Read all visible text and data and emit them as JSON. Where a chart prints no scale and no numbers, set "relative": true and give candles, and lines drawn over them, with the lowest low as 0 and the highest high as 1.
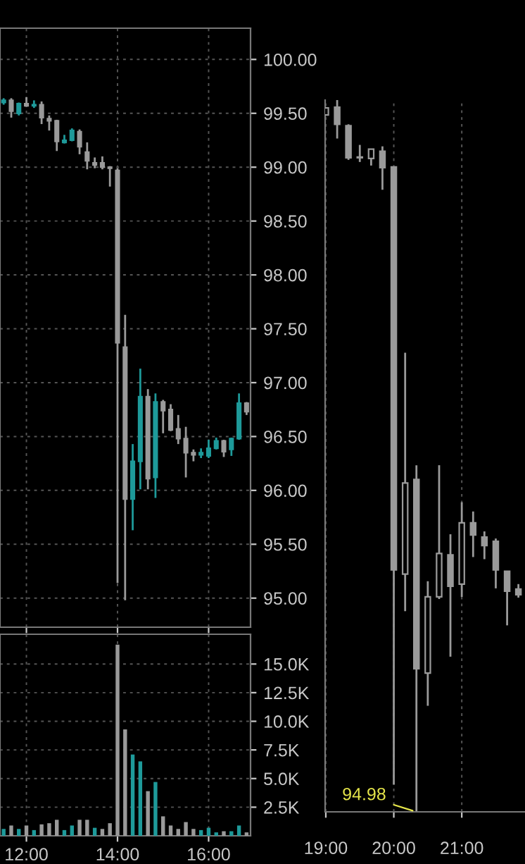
{
  "chart_data": [
    {
      "type": "candlestick",
      "x": [
        11.5,
        11.667,
        11.833,
        12.0,
        12.167,
        12.333,
        12.5,
        12.667,
        12.833,
        13.0,
        13.167,
        13.333,
        13.5,
        13.667,
        13.833,
        14.0,
        14.167,
        14.333,
        14.5,
        14.667,
        14.833,
        15.0,
        15.167,
        15.333,
        15.5,
        15.667,
        15.833,
        16.0,
        16.167,
        16.333,
        16.5,
        16.667,
        16.833
      ],
      "ohlc": [
        [
          99.6,
          99.64,
          99.58,
          99.62
        ],
        [
          99.62,
          99.64,
          99.46,
          99.52
        ],
        [
          99.5,
          99.6,
          99.48,
          99.59
        ],
        [
          99.59,
          99.65,
          99.56,
          99.57
        ],
        [
          99.57,
          99.62,
          99.55,
          99.58
        ],
        [
          99.58,
          99.61,
          99.4,
          99.46
        ],
        [
          99.45,
          99.48,
          99.34,
          99.43
        ],
        [
          99.43,
          99.44,
          99.15,
          99.24
        ],
        [
          99.23,
          99.3,
          99.22,
          99.25
        ],
        [
          99.25,
          99.36,
          99.24,
          99.34
        ],
        [
          99.33,
          99.35,
          99.12,
          99.19
        ],
        [
          99.14,
          99.23,
          98.98,
          99.06
        ],
        [
          99.04,
          99.09,
          98.99,
          99.02
        ],
        [
          99.04,
          99.1,
          98.98,
          99.0
        ],
        [
          99.0,
          99.01,
          98.82,
          98.99
        ],
        [
          98.97,
          98.99,
          95.14,
          97.37
        ],
        [
          97.33,
          97.63,
          94.98,
          95.92
        ],
        [
          95.92,
          96.43,
          95.63,
          96.27
        ],
        [
          96.27,
          97.13,
          96.01,
          96.87
        ],
        [
          96.87,
          96.94,
          96.01,
          96.11
        ],
        [
          96.12,
          96.9,
          95.93,
          96.82
        ],
        [
          96.82,
          96.84,
          96.53,
          96.74
        ],
        [
          96.75,
          96.8,
          96.55,
          96.56
        ],
        [
          96.57,
          96.7,
          96.43,
          96.48
        ],
        [
          96.48,
          96.59,
          96.12,
          96.35
        ],
        [
          96.35,
          96.38,
          96.27,
          96.33
        ],
        [
          96.33,
          96.39,
          96.3,
          96.35
        ],
        [
          96.32,
          96.47,
          96.3,
          96.39
        ],
        [
          96.39,
          96.49,
          96.38,
          96.46
        ],
        [
          96.46,
          96.47,
          96.31,
          96.36
        ],
        [
          96.38,
          96.49,
          96.32,
          96.48
        ],
        [
          96.48,
          96.9,
          96.47,
          96.81
        ],
        [
          96.81,
          96.82,
          96.7,
          96.73
        ]
      ],
      "colors": [
        "#1e9a9a",
        "#9a9a9a",
        "#1e9a9a",
        "#9a9a9a",
        "#1e9a9a",
        "#9a9a9a",
        "#9a9a9a",
        "#9a9a9a",
        "#1e9a9a",
        "#1e9a9a",
        "#9a9a9a",
        "#9a9a9a",
        "#9a9a9a",
        "#9a9a9a",
        "#9a9a9a",
        "#9a9a9a",
        "#9a9a9a",
        "#1e9a9a",
        "#1e9a9a",
        "#9a9a9a",
        "#1e9a9a",
        "#9a9a9a",
        "#9a9a9a",
        "#9a9a9a",
        "#9a9a9a",
        "#9a9a9a",
        "#1e9a9a",
        "#1e9a9a",
        "#1e9a9a",
        "#9a9a9a",
        "#1e9a9a",
        "#1e9a9a",
        "#9a9a9a"
      ],
      "xlim": [
        11.42,
        16.92
      ],
      "xticks": [
        {
          "value": 12,
          "label": null
        },
        {
          "value": 14,
          "label": null
        },
        {
          "value": 16,
          "label": null
        }
      ],
      "ylim": [
        94.73,
        100.29
      ],
      "yticks": [
        {
          "value": 95,
          "label": "95.00"
        },
        {
          "value": 95.5,
          "label": "95.50"
        },
        {
          "value": 96,
          "label": "96.00"
        },
        {
          "value": 96.5,
          "label": "96.50"
        },
        {
          "value": 97,
          "label": "97.00"
        },
        {
          "value": 97.5,
          "label": "97.50"
        },
        {
          "value": 98,
          "label": "98.00"
        },
        {
          "value": 98.5,
          "label": "98.50"
        },
        {
          "value": 99,
          "label": "99.00"
        },
        {
          "value": 99.5,
          "label": "99.50"
        },
        {
          "value": 100,
          "label": "100.00"
        }
      ],
      "tick_labels": "y",
      "grid": true
    },
    {
      "type": "bar",
      "x": [
        11.5,
        11.667,
        11.833,
        12.0,
        12.167,
        12.333,
        12.5,
        12.667,
        12.833,
        13.0,
        13.167,
        13.333,
        13.5,
        13.667,
        13.833,
        14.0,
        14.167,
        14.333,
        14.5,
        14.667,
        14.833,
        15.0,
        15.167,
        15.333,
        15.5,
        15.667,
        15.833,
        16.0,
        16.167,
        16.333,
        16.5,
        16.667,
        16.833
      ],
      "values": [
        600,
        900,
        600,
        900,
        500,
        1000,
        1100,
        1400,
        500,
        900,
        1400,
        1400,
        700,
        600,
        1100,
        16700,
        9300,
        7100,
        6500,
        3900,
        4700,
        1700,
        900,
        600,
        1200,
        600,
        500,
        700,
        300,
        400,
        400,
        900,
        300
      ],
      "colors": [
        "#1e9a9a",
        "#9a9a9a",
        "#1e9a9a",
        "#9a9a9a",
        "#1e9a9a",
        "#9a9a9a",
        "#9a9a9a",
        "#9a9a9a",
        "#1e9a9a",
        "#1e9a9a",
        "#9a9a9a",
        "#9a9a9a",
        "#1e9a9a",
        "#9a9a9a",
        "#9a9a9a",
        "#9a9a9a",
        "#9a9a9a",
        "#1e9a9a",
        "#1e9a9a",
        "#9a9a9a",
        "#1e9a9a",
        "#9a9a9a",
        "#9a9a9a",
        "#9a9a9a",
        "#9a9a9a",
        "#9a9a9a",
        "#1e9a9a",
        "#1e9a9a",
        "#1e9a9a",
        "#9a9a9a",
        "#1e9a9a",
        "#1e9a9a",
        "#9a9a9a"
      ],
      "xlim": [
        11.42,
        16.92
      ],
      "xticks": [
        {
          "value": 12,
          "label": "12:00"
        },
        {
          "value": 14,
          "label": "14:00"
        },
        {
          "value": 16,
          "label": "16:00"
        }
      ],
      "ylim": [
        0,
        17600
      ],
      "yticks": [
        {
          "value": 2500,
          "label": "2.5K"
        },
        {
          "value": 5000,
          "label": "5.0K"
        },
        {
          "value": 7500,
          "label": "7.5K"
        },
        {
          "value": 10000,
          "label": "10.0K"
        },
        {
          "value": 12500,
          "label": "12.5K"
        },
        {
          "value": 15000,
          "label": "15.0K"
        }
      ],
      "grid": true
    },
    {
      "type": "candlestick",
      "relative": true,
      "x": [
        19.0,
        19.167,
        19.333,
        19.5,
        19.667,
        19.833,
        20.0,
        20.167,
        20.333,
        20.5,
        20.667,
        20.833,
        21.0,
        21.167,
        21.333,
        21.5,
        21.667,
        21.833
      ],
      "ohlc": [
        [
          0.979,
          0.989,
          0.979,
          0.989
        ],
        [
          0.99,
          1.0,
          0.946,
          0.966
        ],
        [
          0.964,
          0.966,
          0.916,
          0.919
        ],
        [
          0.92,
          0.937,
          0.913,
          0.919
        ],
        [
          0.918,
          0.931,
          0.908,
          0.931
        ],
        [
          0.928,
          0.935,
          0.874,
          0.905
        ],
        [
          0.906,
          0.907,
          0.038,
          0.34
        ],
        [
          0.334,
          0.645,
          0.282,
          0.462
        ],
        [
          0.467,
          0.487,
          0.0,
          0.201
        ],
        [
          0.195,
          0.324,
          0.149,
          0.302
        ],
        [
          0.302,
          0.487,
          0.299,
          0.363
        ],
        [
          0.361,
          0.39,
          0.218,
          0.317
        ],
        [
          0.32,
          0.435,
          0.302,
          0.406
        ],
        [
          0.406,
          0.422,
          0.358,
          0.389
        ],
        [
          0.386,
          0.394,
          0.355,
          0.374
        ],
        [
          0.38,
          0.384,
          0.314,
          0.34
        ],
        [
          0.338,
          0.338,
          0.262,
          0.31
        ],
        [
          0.313,
          0.32,
          0.301,
          0.305
        ]
      ],
      "colors": [
        "#9a9a9a",
        "#9a9a9a",
        "#9a9a9a",
        "#9a9a9a",
        "#9a9a9a",
        "#9a9a9a",
        "#9a9a9a",
        "#9a9a9a",
        "#9a9a9a",
        "#9a9a9a",
        "#9a9a9a",
        "#9a9a9a",
        "#9a9a9a",
        "#9a9a9a",
        "#9a9a9a",
        "#9a9a9a",
        "#9a9a9a",
        "#9a9a9a"
      ],
      "xlim": [
        18.99,
        21.93
      ],
      "xticks": [
        {
          "value": 19,
          "label": "19:00"
        },
        {
          "value": 20,
          "label": "20:00"
        },
        {
          "value": 21,
          "label": "21:00"
        }
      ],
      "annotations": [
        {
          "text": "94.98",
          "x": 20.333,
          "y": 0.0
        }
      ],
      "tick_labels": "x",
      "grid": "x"
    }
  ]
}
